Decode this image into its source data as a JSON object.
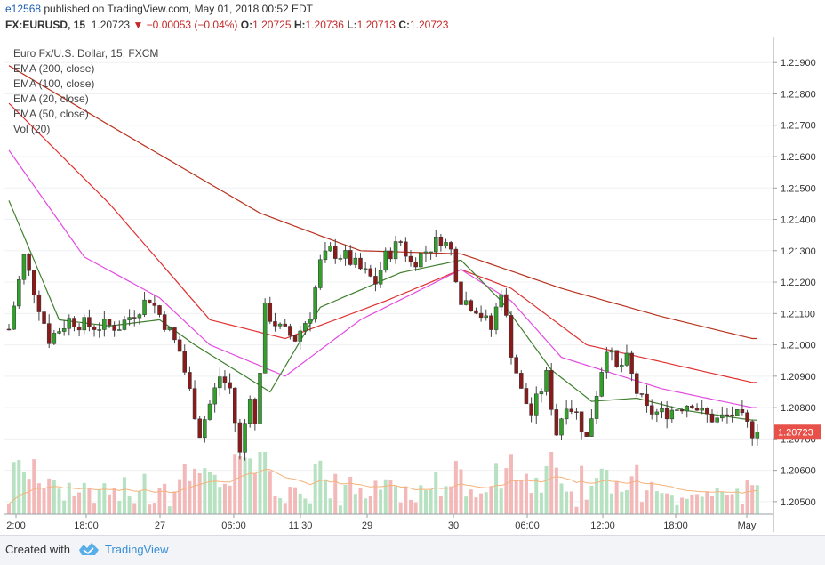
{
  "header": {
    "user": "e12568",
    "published": " published on TradingView.com, May 01, 2018 00:52 EDT",
    "symbol": "FX:EURUSD, 15",
    "last": "1.20723",
    "change": "−0.00053 (−0.04%)",
    "open_label": "O:",
    "open": "1.20725",
    "high_label": "H:",
    "high": "1.20736",
    "low_label": "L:",
    "low": "1.20713",
    "close_label": "C:",
    "close": "1.20723"
  },
  "legend": [
    "Euro Fx/U.S. Dollar, 15, FXCM",
    "EMA (200, close)",
    "EMA (100, close)",
    "EMA (20, close)",
    "EMA (50, close)",
    "Vol (20)"
  ],
  "footer": {
    "created_with": "Created with",
    "brand": "TradingView"
  },
  "colors": {
    "up": "#33a02c",
    "down": "#8b1a1a",
    "ema200": "#b8321e",
    "ema100": "#e03030",
    "ema20": "#3f7f2e",
    "ema50": "#e34be0",
    "vol_up": "#b7e2c2",
    "vol_down": "#f3b8b8",
    "vol_ma": "#f5b27a",
    "price_tag": "#e8504a",
    "grid": "#eef0f3"
  },
  "chart_data": {
    "type": "candlestick",
    "title": "Euro Fx/U.S. Dollar, 15, FXCM",
    "ylim": [
      1.2046,
      1.2198
    ],
    "y_ticks": [
      "1.20500",
      "1.20600",
      "1.20700",
      "1.20800",
      "1.20900",
      "1.21000",
      "1.21100",
      "1.21200",
      "1.21300",
      "1.21400",
      "1.21500",
      "1.21600",
      "1.21700",
      "1.21800",
      "1.21900"
    ],
    "x_ticks": [
      "2:00",
      "18:00",
      "27",
      "06:00",
      "11:30",
      "29",
      "30",
      "06:00",
      "12:00",
      "18:00",
      "May"
    ],
    "last_price_label": "1.20723",
    "last_price": 1.20723,
    "close_anchors": [
      [
        0,
        1.2105
      ],
      [
        3,
        1.2128
      ],
      [
        8,
        1.2102
      ],
      [
        12,
        1.2108
      ],
      [
        16,
        1.2106
      ],
      [
        22,
        1.2106
      ],
      [
        28,
        1.2115
      ],
      [
        31,
        1.2107
      ],
      [
        34,
        1.2098
      ],
      [
        38,
        1.2072
      ],
      [
        42,
        1.209
      ],
      [
        44,
        1.2086
      ],
      [
        46,
        1.2065
      ],
      [
        48,
        1.2085
      ],
      [
        49,
        1.2074
      ],
      [
        51,
        1.2111
      ],
      [
        54,
        1.2105
      ],
      [
        57,
        1.2102
      ],
      [
        60,
        1.211
      ],
      [
        62,
        1.2126
      ],
      [
        64,
        1.213
      ],
      [
        67,
        1.2128
      ],
      [
        70,
        1.2124
      ],
      [
        73,
        1.212
      ],
      [
        75,
        1.2128
      ],
      [
        78,
        1.2133
      ],
      [
        80,
        1.2126
      ],
      [
        83,
        1.213
      ],
      [
        86,
        1.2134
      ],
      [
        88,
        1.213
      ],
      [
        90,
        1.2115
      ],
      [
        93,
        1.2112
      ],
      [
        96,
        1.2105
      ],
      [
        98,
        1.2118
      ],
      [
        100,
        1.2098
      ],
      [
        102,
        1.2085
      ],
      [
        104,
        1.2078
      ],
      [
        107,
        1.209
      ],
      [
        109,
        1.2072
      ],
      [
        111,
        1.2082
      ],
      [
        113,
        1.2078
      ],
      [
        115,
        1.207
      ],
      [
        117,
        1.2085
      ],
      [
        119,
        1.21
      ],
      [
        121,
        1.2092
      ],
      [
        123,
        1.2095
      ],
      [
        125,
        1.2085
      ],
      [
        127,
        1.2079
      ],
      [
        130,
        1.2078
      ],
      [
        133,
        1.208
      ],
      [
        136,
        1.2082
      ],
      [
        138,
        1.2078
      ],
      [
        141,
        1.2076
      ],
      [
        144,
        1.2078
      ],
      [
        146,
        1.2076
      ],
      [
        148,
        1.20723
      ]
    ],
    "ema200": [
      [
        0,
        1.2189
      ],
      [
        20,
        1.217
      ],
      [
        50,
        1.2142
      ],
      [
        70,
        1.213
      ],
      [
        90,
        1.2129
      ],
      [
        110,
        1.2118
      ],
      [
        130,
        1.2109
      ],
      [
        148,
        1.2102
      ]
    ],
    "ema100": [
      [
        0,
        1.2177
      ],
      [
        20,
        1.2145
      ],
      [
        40,
        1.2108
      ],
      [
        55,
        1.2102
      ],
      [
        75,
        1.2114
      ],
      [
        90,
        1.2124
      ],
      [
        100,
        1.2118
      ],
      [
        115,
        1.21
      ],
      [
        148,
        1.2088
      ]
    ],
    "ema50": [
      [
        0,
        1.2162
      ],
      [
        15,
        1.2128
      ],
      [
        30,
        1.2115
      ],
      [
        40,
        1.21
      ],
      [
        55,
        1.209
      ],
      [
        70,
        1.2108
      ],
      [
        90,
        1.2124
      ],
      [
        100,
        1.2114
      ],
      [
        110,
        1.2096
      ],
      [
        130,
        1.2086
      ],
      [
        148,
        1.208
      ]
    ],
    "ema20": [
      [
        0,
        1.2146
      ],
      [
        10,
        1.2108
      ],
      [
        20,
        1.2106
      ],
      [
        30,
        1.2108
      ],
      [
        37,
        1.21
      ],
      [
        45,
        1.2092
      ],
      [
        52,
        1.2085
      ],
      [
        62,
        1.2112
      ],
      [
        78,
        1.2123
      ],
      [
        90,
        1.2127
      ],
      [
        98,
        1.2114
      ],
      [
        108,
        1.2092
      ],
      [
        116,
        1.2082
      ],
      [
        125,
        1.2083
      ],
      [
        135,
        1.2079
      ],
      [
        148,
        1.2076
      ]
    ]
  }
}
